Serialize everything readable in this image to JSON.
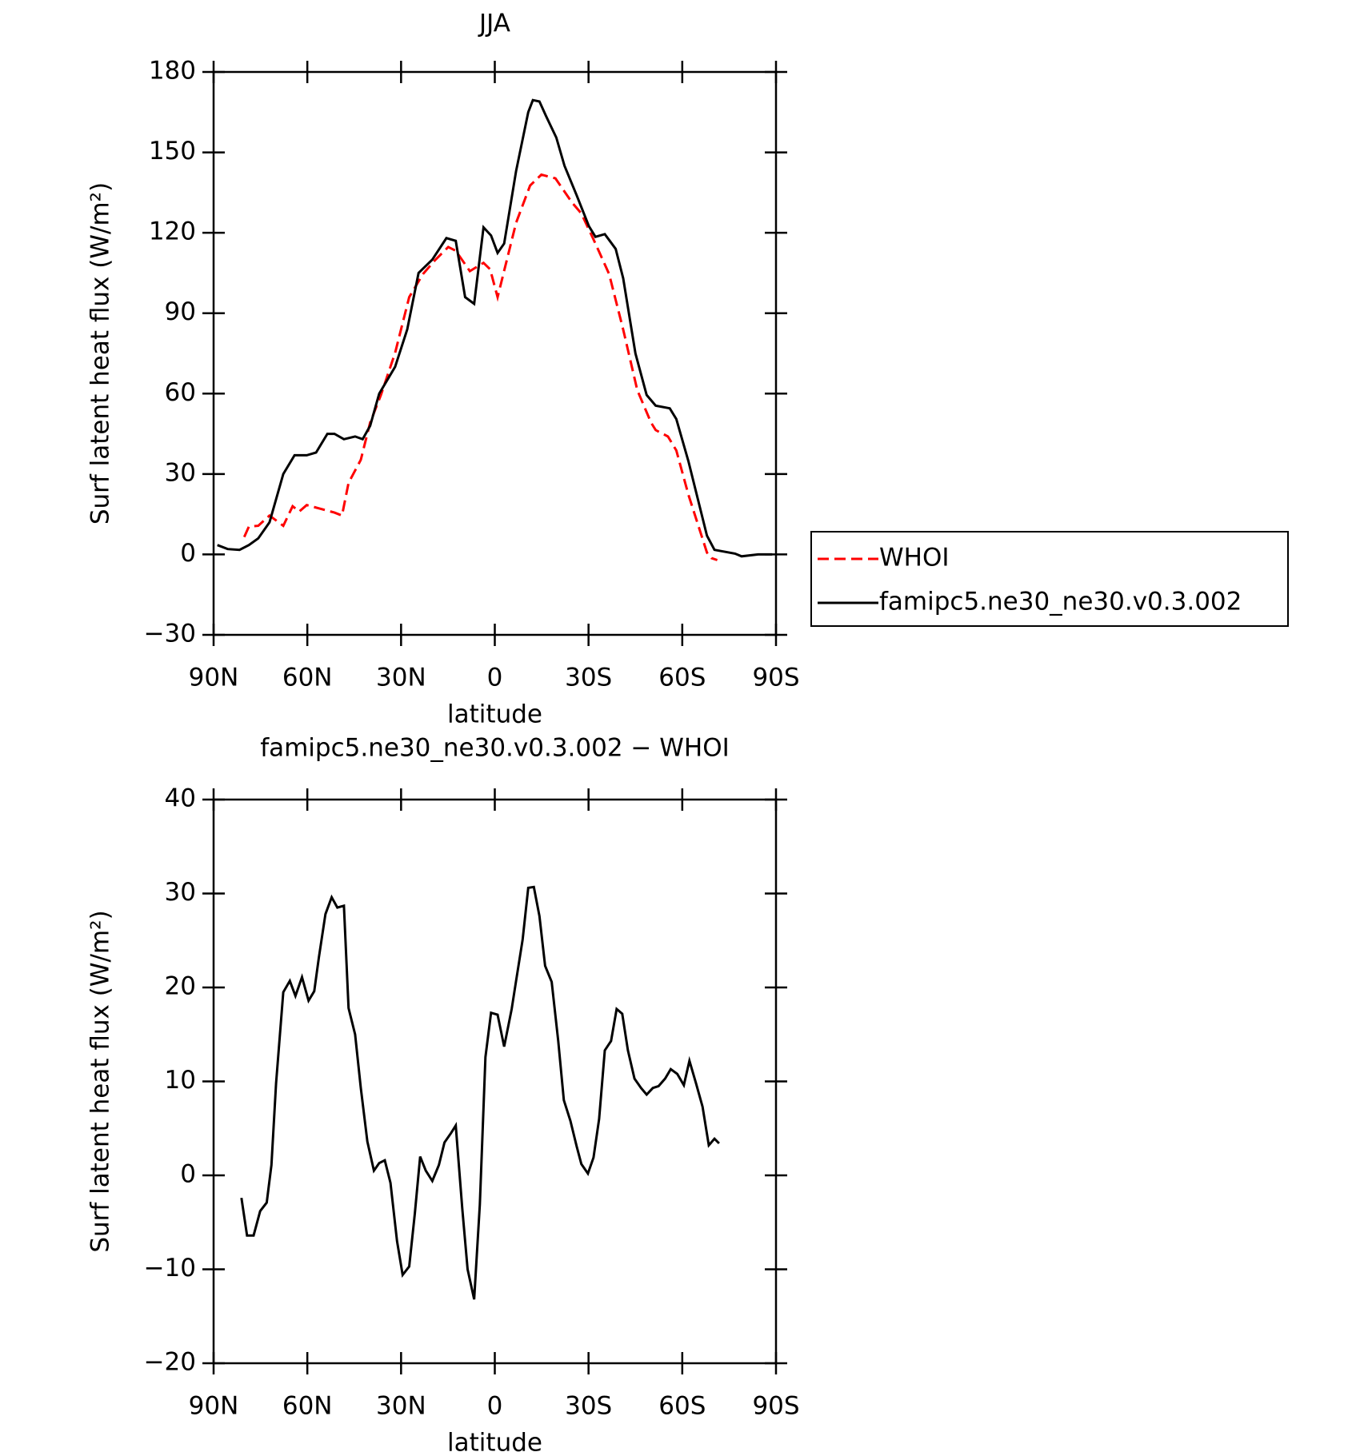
{
  "chart_data": [
    {
      "type": "line",
      "title": "JJA",
      "xlabel": "latitude",
      "ylabel": "Surf latent heat flux (W/m²)",
      "xlim": [
        90,
        -90
      ],
      "xticks": [
        {
          "value": 90,
          "label": "90N"
        },
        {
          "value": 60,
          "label": "60N"
        },
        {
          "value": 30,
          "label": "30N"
        },
        0,
        {
          "value": -30,
          "label": "30S"
        },
        {
          "value": -60,
          "label": "60S"
        },
        {
          "value": -90,
          "label": "90S"
        }
      ],
      "ylim": [
        -30,
        180
      ],
      "yticks": [
        {
          "value": -30,
          "label": "−30"
        },
        0,
        30,
        60,
        90,
        120,
        150,
        180
      ],
      "legend": "right",
      "series": [
        {
          "name": "WHOI",
          "color": "#ff0000",
          "dash": true,
          "x": [
            80.2,
            78.7,
            75.7,
            72.1,
            67.7,
            64.7,
            62.6,
            60.2,
            55.7,
            51.3,
            48.9,
            46.8,
            42.9,
            39.9,
            36.4,
            31.9,
            27.4,
            23,
            19.1,
            14.9,
            12.5,
            8,
            3.6,
            1.5,
            -0.9,
            -6.8,
            -11.3,
            -14.9,
            -19.4,
            -24.7,
            -27.7,
            -32.2,
            -36.6,
            -41.1,
            -45.6,
            -50,
            -51.5,
            -55.4,
            -58.1,
            -62,
            -67.9,
            -69.4,
            -71.2
          ],
          "values": [
            6.5,
            10.4,
            10.7,
            14.5,
            10.7,
            18,
            16,
            18.4,
            17,
            15.6,
            14.5,
            26.7,
            35.3,
            49.2,
            59.6,
            75.2,
            96,
            104.6,
            109.8,
            114.7,
            113.3,
            105.7,
            108.8,
            106.4,
            96,
            123.7,
            137.6,
            141.7,
            140.3,
            131.3,
            127.2,
            116,
            104.6,
            83.9,
            61.3,
            49.2,
            46.4,
            44,
            38.8,
            22.2,
            0.7,
            -1.4,
            -2.1
          ]
        },
        {
          "name": "famipc5.ne30_ne30.v0.3.002",
          "color": "#000000",
          "dash": false,
          "x": [
            88.8,
            85.5,
            81.7,
            78.7,
            75.7,
            72.1,
            67.7,
            64.1,
            60.2,
            57.2,
            53.6,
            51.3,
            48.3,
            44.7,
            42.3,
            39.9,
            37,
            31.9,
            28,
            24.4,
            20,
            15.5,
            12.5,
            9.5,
            6.6,
            3.6,
            1.2,
            -0.9,
            -3,
            -6.8,
            -10.7,
            -12.2,
            -14.3,
            -16.4,
            -19.7,
            -22.3,
            -26.2,
            -30.1,
            -32.2,
            -35.2,
            -38.7,
            -41.1,
            -45,
            -48.6,
            -51.5,
            -56,
            -58.1,
            -62,
            -67.9,
            -70.3,
            -76.9,
            -79,
            -84.3,
            -88.8
          ],
          "values": [
            3.5,
            2,
            1.7,
            3.5,
            6,
            12,
            30,
            37,
            37,
            38,
            45,
            45,
            43,
            44,
            43,
            48,
            60,
            70,
            84,
            105,
            110,
            118,
            117,
            96,
            93.5,
            122,
            119,
            112.5,
            116,
            143,
            165,
            169.5,
            169,
            163.5,
            155.5,
            145,
            134,
            122.5,
            118.5,
            119.5,
            114,
            103,
            75,
            59.5,
            55.5,
            54.5,
            50.5,
            34.7,
            7,
            1.7,
            0.3,
            -0.7,
            0,
            0
          ]
        }
      ]
    },
    {
      "type": "line",
      "title": "famipc5.ne30_ne30.v0.3.002 − WHOI",
      "xlabel": "latitude",
      "ylabel": "Surf latent heat flux (W/m²)",
      "xlim": [
        90,
        -90
      ],
      "xticks": [
        {
          "value": 90,
          "label": "90N"
        },
        {
          "value": 60,
          "label": "60N"
        },
        {
          "value": 30,
          "label": "30N"
        },
        0,
        {
          "value": -30,
          "label": "30S"
        },
        {
          "value": -60,
          "label": "60S"
        },
        {
          "value": -90,
          "label": "90S"
        }
      ],
      "ylim": [
        -20,
        40
      ],
      "yticks": [
        {
          "value": -20,
          "label": "−20"
        },
        {
          "value": -10,
          "label": "−10"
        },
        0,
        10,
        20,
        30,
        40
      ],
      "series": [
        {
          "color": "#000000",
          "dash": false,
          "x": [
            81.1,
            79.3,
            77.2,
            75.1,
            73,
            71.5,
            70,
            67.7,
            65.6,
            63.8,
            61.7,
            59.6,
            57.8,
            56.3,
            54.2,
            52.2,
            50.4,
            48.3,
            46.8,
            44.7,
            42.9,
            40.8,
            38.7,
            37,
            35.2,
            33.4,
            31.3,
            29.5,
            27.4,
            25.6,
            23.9,
            22.1,
            20,
            17.9,
            16.1,
            14,
            12.5,
            10.4,
            8.7,
            6.6,
            4.8,
            3,
            1.2,
            -0.9,
            -3,
            -5.4,
            -6.8,
            -8.9,
            -10.7,
            -12.5,
            -14.3,
            -16.1,
            -18.2,
            -20.3,
            -22.1,
            -24.2,
            -26.2,
            -27.7,
            -29.8,
            -31.6,
            -33.4,
            -35.2,
            -37.2,
            -39,
            -40.8,
            -42.6,
            -44.7,
            -46.8,
            -48.6,
            -50.6,
            -52.4,
            -54.5,
            -56.3,
            -58.4,
            -60.5,
            -62.3,
            -64.4,
            -66.5,
            -68.5,
            -70.3,
            -71.8
          ],
          "values": [
            -2.4,
            -6.4,
            -6.4,
            -3.8,
            -2.9,
            1.1,
            9.8,
            19.5,
            20.7,
            19.1,
            21.1,
            18.6,
            19.6,
            23.2,
            27.8,
            29.6,
            28.5,
            28.7,
            17.8,
            15,
            9.3,
            3.6,
            0.5,
            1.3,
            1.6,
            -0.8,
            -7,
            -10.6,
            -9.7,
            -4.1,
            2,
            0.5,
            -0.6,
            1.1,
            3.5,
            4.5,
            5.3,
            -3.6,
            -10,
            -13.2,
            -3.1,
            12.6,
            17.3,
            17.1,
            13.7,
            17.7,
            20.7,
            25.1,
            30.6,
            30.7,
            27.6,
            22.3,
            20.6,
            14.3,
            8,
            5.8,
            3.1,
            1.2,
            0.2,
            1.9,
            6,
            13.3,
            14.3,
            17.7,
            17.2,
            13.3,
            10.3,
            9.3,
            8.6,
            9.3,
            9.5,
            10.3,
            11.3,
            10.8,
            9.6,
            12.2,
            9.8,
            7.3,
            3.2,
            3.9,
            3.4
          ]
        }
      ]
    }
  ]
}
